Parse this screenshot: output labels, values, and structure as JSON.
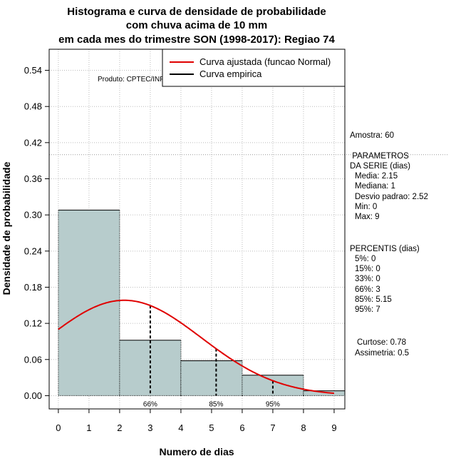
{
  "chart_data": {
    "type": "bar",
    "title_lines": [
      "Histograma e curva de densidade de probabilidade",
      "com chuva acima de 10 mm",
      "em cada mes do trimestre SON (1998-2017): Regiao 74"
    ],
    "xlabel": "Numero de dias",
    "ylabel": "Densidade de probabilidade",
    "xlim": [
      -0.3,
      9.35
    ],
    "ylim": [
      -0.022,
      0.575
    ],
    "x_ticks": [
      0,
      1,
      2,
      3,
      4,
      5,
      6,
      7,
      8,
      9
    ],
    "y_ticks": [
      0.0,
      0.06,
      0.12,
      0.18,
      0.24,
      0.3,
      0.36,
      0.42,
      0.48,
      0.54
    ],
    "y_tick_labels": [
      "0.00",
      "0.06",
      "0.12",
      "0.18",
      "0.24",
      "0.30",
      "0.36",
      "0.42",
      "0.48",
      "0.54"
    ],
    "grid": true,
    "bins": [
      {
        "x0": 0,
        "x1": 2,
        "density": 0.308
      },
      {
        "x0": 2,
        "x1": 4,
        "density": 0.092
      },
      {
        "x0": 4,
        "x1": 6,
        "density": 0.058
      },
      {
        "x0": 6,
        "x1": 8,
        "density": 0.034
      },
      {
        "x0": 8,
        "x1": 10,
        "density": 0.008
      }
    ],
    "bar_color": "#b7cccc",
    "normal_curve": {
      "mean": 2.15,
      "sd": 2.52,
      "x_start": 0,
      "x_end": 9,
      "color": "#e00000"
    },
    "reference_line_y": 0.4,
    "percentile_markers": [
      {
        "label": "66%",
        "x": 3
      },
      {
        "label": "85%",
        "x": 5.15
      },
      {
        "label": "95%",
        "x": 7
      }
    ],
    "legend": {
      "position": "top-right",
      "entries": [
        {
          "label": "Curva ajustada (funcao Normal)",
          "color": "#e00000"
        },
        {
          "label": "Curva empirica",
          "color": "#000000"
        }
      ]
    },
    "annotation": "Produto: CPTEC/INPE"
  },
  "stats_panel": {
    "amostra": "Amostra: 60",
    "param_header": [
      " PARAMETROS",
      "DA SERIE (dias)"
    ],
    "params": [
      "Media: 2.15",
      "Mediana: 1",
      "Desvio padrao: 2.52",
      "Min: 0",
      "Max: 9"
    ],
    "percentis_header": "PERCENTIS (dias)",
    "percentis": [
      "5%: 0",
      "15%: 0",
      "33%: 0",
      "66%: 3",
      "85%: 5.15",
      "95%: 7"
    ],
    "curtose": "Curtose: 0.78",
    "assimetria": "Assimetria: 0.5"
  }
}
